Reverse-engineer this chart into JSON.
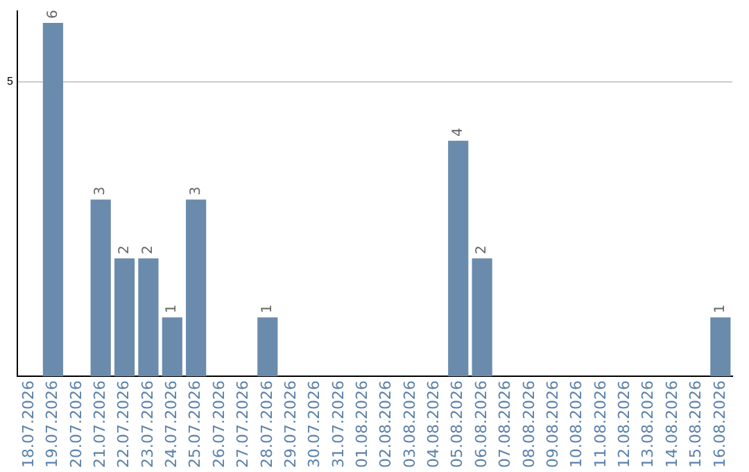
{
  "chart_data": {
    "type": "bar",
    "categories": [
      "18.07.2026",
      "19.07.2026",
      "20.07.2026",
      "21.07.2026",
      "22.07.2026",
      "23.07.2026",
      "24.07.2026",
      "25.07.2026",
      "26.07.2026",
      "27.07.2026",
      "28.07.2026",
      "29.07.2026",
      "30.07.2026",
      "31.07.2026",
      "01.08.2026",
      "02.08.2026",
      "03.08.2026",
      "04.08.2026",
      "05.08.2026",
      "06.08.2026",
      "07.08.2026",
      "08.08.2026",
      "09.08.2026",
      "10.08.2026",
      "11.08.2026",
      "12.08.2026",
      "13.08.2026",
      "14.08.2026",
      "15.08.2026",
      "16.08.2026"
    ],
    "values": [
      null,
      6,
      null,
      3,
      2,
      2,
      1,
      3,
      null,
      null,
      1,
      null,
      null,
      null,
      null,
      null,
      null,
      null,
      4,
      2,
      null,
      null,
      null,
      null,
      null,
      null,
      null,
      null,
      null,
      1
    ],
    "color": "#6b8bad",
    "ylim": [
      0,
      6.2
    ],
    "yticks": [
      5
    ],
    "grid": "y",
    "legend": false,
    "data_labels": true
  }
}
